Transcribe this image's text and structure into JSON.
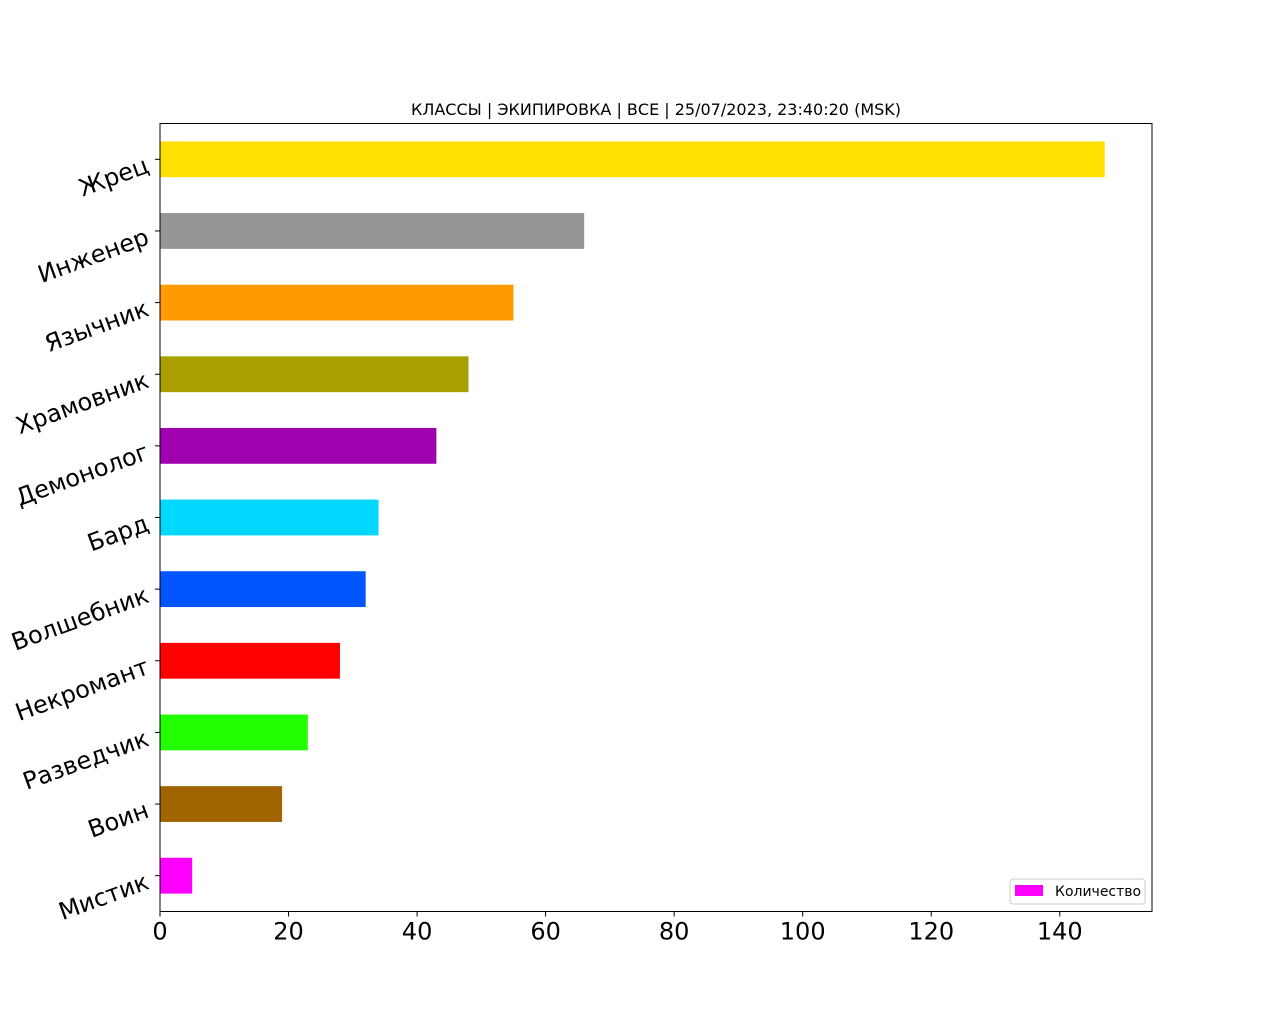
{
  "chart_data": {
    "type": "bar",
    "orientation": "horizontal",
    "title": "КЛАССЫ | ЭКИПИРОВКА | ВСЕ | 25/07/2023, 23:40:20 (MSK)",
    "xlabel": "",
    "ylabel": "",
    "categories": [
      "Мистик",
      "Воин",
      "Разведчик",
      "Некромант",
      "Волшебник",
      "Бард",
      "Демонолог",
      "Храмовник",
      "Язычник",
      "Инженер",
      "Жрец"
    ],
    "series": [
      {
        "name": "Количество",
        "values": [
          5,
          19,
          23,
          28,
          32,
          34,
          43,
          48,
          55,
          66,
          147
        ],
        "colors": [
          "#ff00ff",
          "#a06400",
          "#22ff00",
          "#ff0000",
          "#0055ff",
          "#00d8ff",
          "#a000b0",
          "#a9a000",
          "#ff9a00",
          "#969696",
          "#ffe000"
        ]
      }
    ],
    "xticks": [
      "0",
      "20",
      "40",
      "60",
      "80",
      "100",
      "120",
      "140"
    ],
    "xlim": [
      0,
      154.35
    ],
    "grid": false,
    "legend_position": "lower right"
  }
}
